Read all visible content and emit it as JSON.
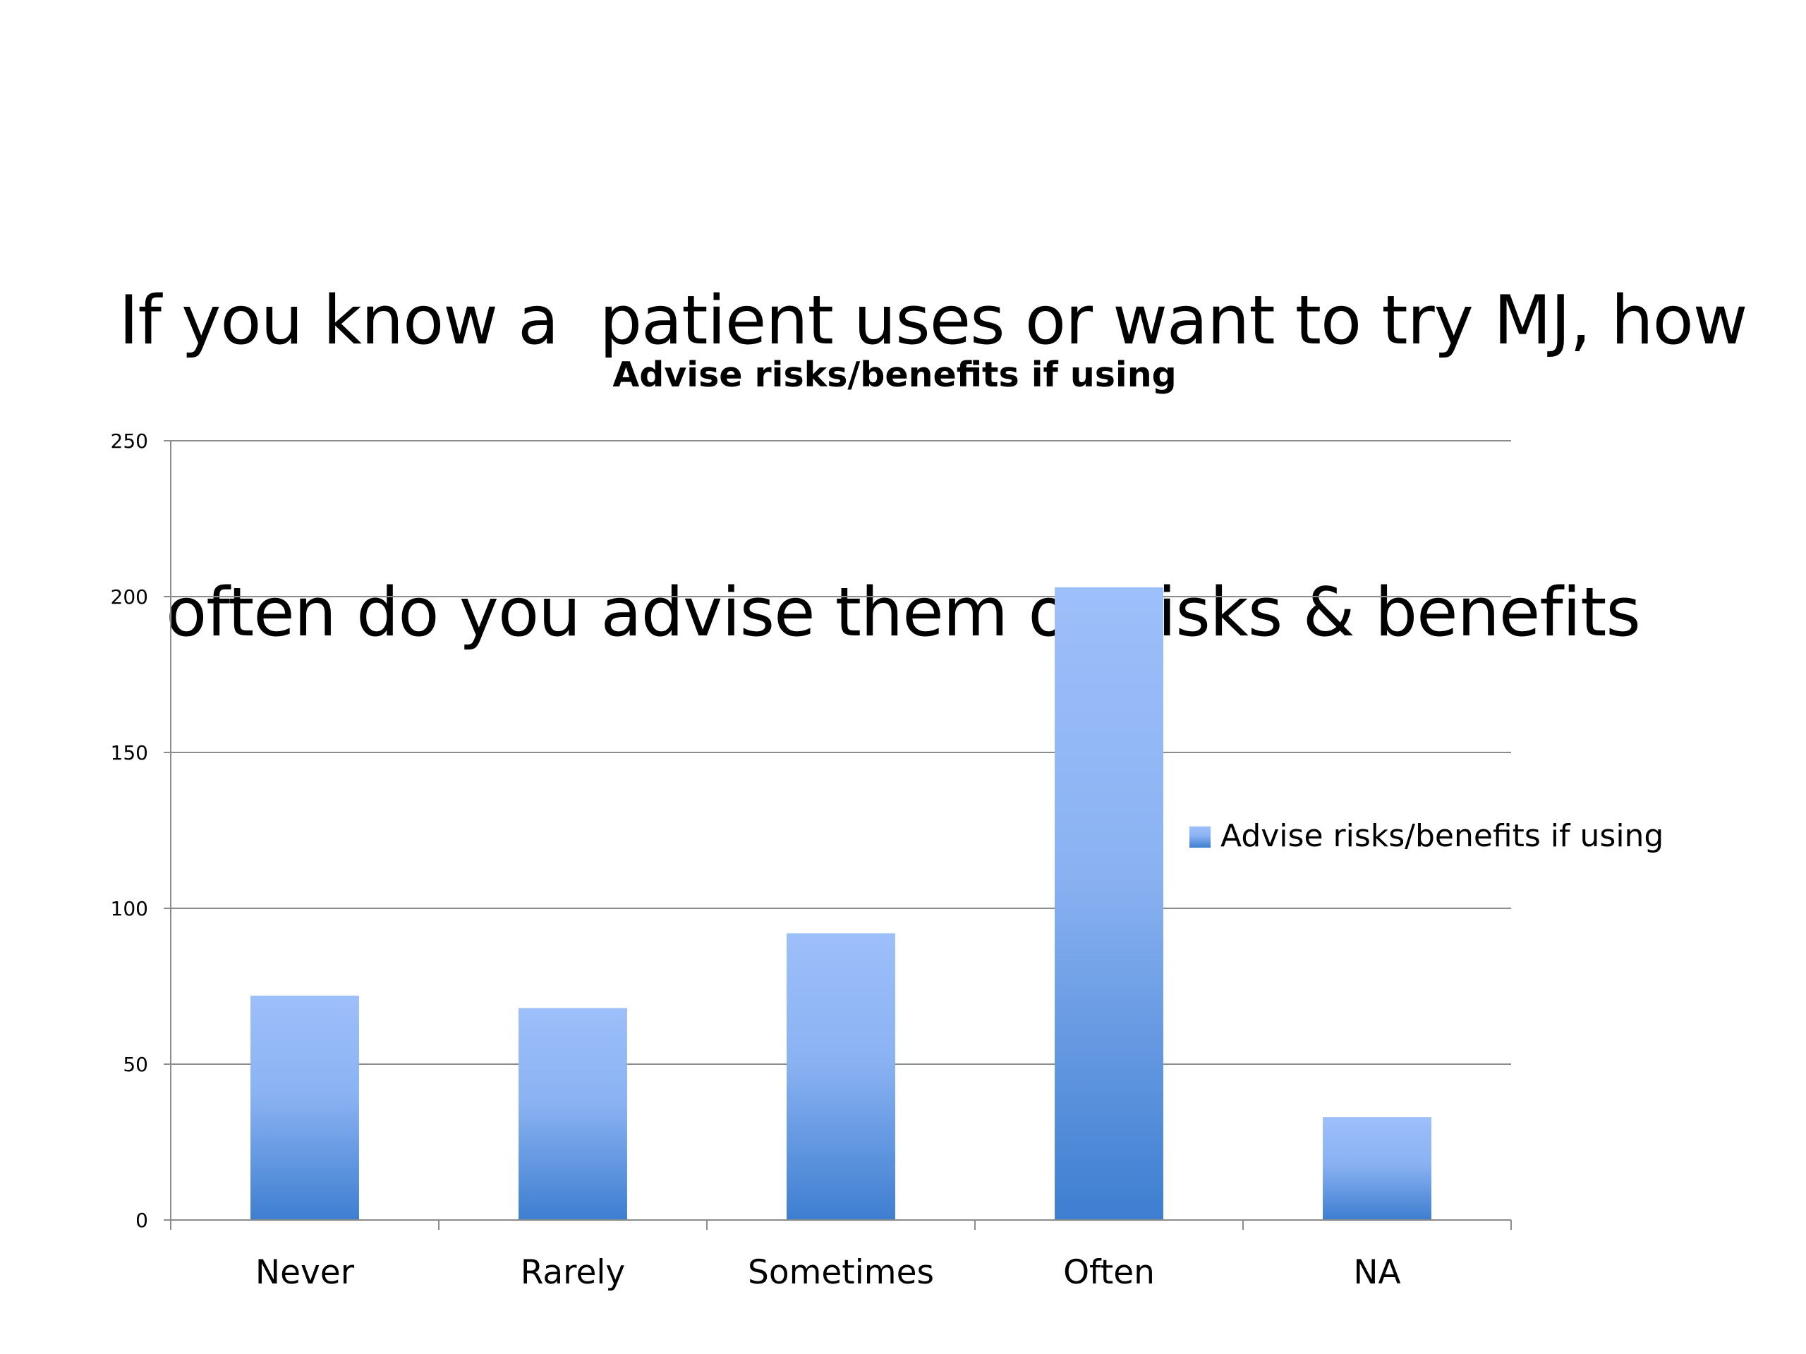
{
  "slide": {
    "title_line1": "If you know a  patient uses or want to try MJ, how",
    "title_line2": "often do you advise them on risks & benefits"
  },
  "chart_data": {
    "type": "bar",
    "title": "Advise risks/benefits if using",
    "categories": [
      "Never",
      "Rarely",
      "Sometimes",
      "Often",
      "NA"
    ],
    "series": [
      {
        "name": "Advise risks/benefits if using",
        "values": [
          72,
          68,
          92,
          203,
          33
        ]
      }
    ],
    "xlabel": "",
    "ylabel": "",
    "ylim": [
      0,
      250
    ],
    "yticks": [
      0,
      50,
      100,
      150,
      200,
      250
    ],
    "grid": true,
    "legend_position": "right",
    "colors": {
      "bar_top": "#9DBFFA",
      "bar_bottom": "#3E7ED0",
      "gridline": "#8C8C8C",
      "axis": "#8C8C8C"
    }
  }
}
